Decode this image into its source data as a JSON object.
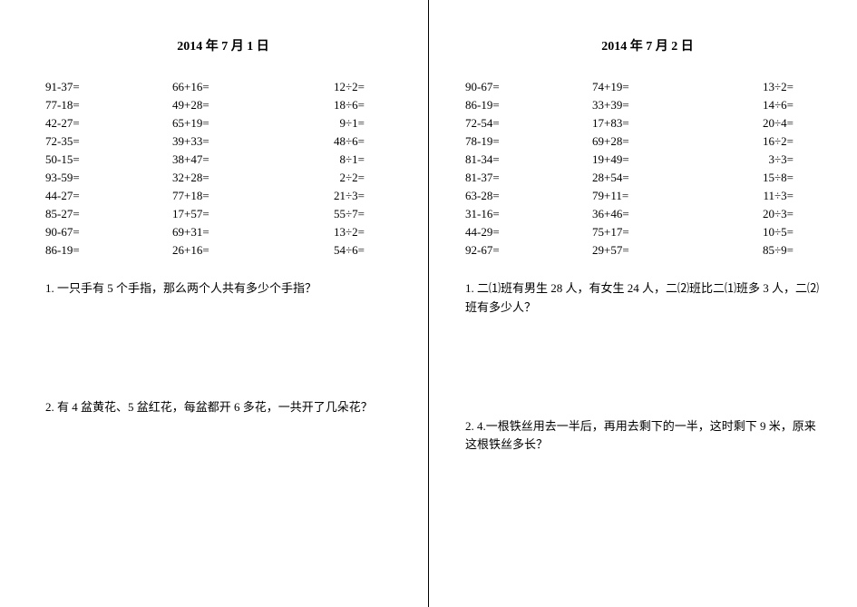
{
  "left": {
    "date": "2014 年 7 月 1 日",
    "rows": [
      {
        "c1": "91-37=",
        "c2": "66+16=",
        "c3": "12÷2="
      },
      {
        "c1": "77-18=",
        "c2": "49+28=",
        "c3": "18÷6="
      },
      {
        "c1": "42-27=",
        "c2": "65+19=",
        "c3": "9÷1="
      },
      {
        "c1": "72-35=",
        "c2": "39+33=",
        "c3": "48÷6="
      },
      {
        "c1": "50-15=",
        "c2": "38+47=",
        "c3": "8÷1="
      },
      {
        "c1": "93-59=",
        "c2": "32+28=",
        "c3": "2÷2="
      },
      {
        "c1": "44-27=",
        "c2": "77+18=",
        "c3": "21÷3="
      },
      {
        "c1": "85-27=",
        "c2": "17+57=",
        "c3": "55÷7="
      },
      {
        "c1": "90-67=",
        "c2": "69+31=",
        "c3": "13÷2="
      },
      {
        "c1": "86-19=",
        "c2": "26+16=",
        "c3": "54÷6="
      }
    ],
    "q1_num": "1.",
    "q1_text": "一只手有 5 个手指，那么两个人共有多少个手指？",
    "q2_num": "2.",
    "q2_text": "有 4 盆黄花、5 盆红花，每盆都开 6 多花，一共开了几朵花？"
  },
  "right": {
    "date": "2014 年 7 月 2 日",
    "rows": [
      {
        "c1": "90-67=",
        "c2": "74+19=",
        "c3": "13÷2="
      },
      {
        "c1": "86-19=",
        "c2": "33+39=",
        "c3": "14÷6="
      },
      {
        "c1": "72-54=",
        "c2": "17+83=",
        "c3": "20÷4="
      },
      {
        "c1": "78-19=",
        "c2": "69+28=",
        "c3": "16÷2="
      },
      {
        "c1": "81-34=",
        "c2": "19+49=",
        "c3": "3÷3="
      },
      {
        "c1": "81-37=",
        "c2": "28+54=",
        "c3": "15÷8="
      },
      {
        "c1": "63-28=",
        "c2": "79+11=",
        "c3": "11÷3="
      },
      {
        "c1": "31-16=",
        "c2": "36+46=",
        "c3": "20÷3="
      },
      {
        "c1": "44-29=",
        "c2": "75+17=",
        "c3": "10÷5="
      },
      {
        "c1": "92-67=",
        "c2": "29+57=",
        "c3": "85÷9="
      }
    ],
    "q1_num": "1.",
    "q1_text": "二⑴班有男生 28 人，有女生 24 人，二⑵班比二⑴班多 3 人，二⑵班有多少人？",
    "q2_num": "2.",
    "q2_text": "4.一根铁丝用去一半后，再用去剩下的一半，这时剩下 9 米，原来这根铁丝多长？"
  }
}
